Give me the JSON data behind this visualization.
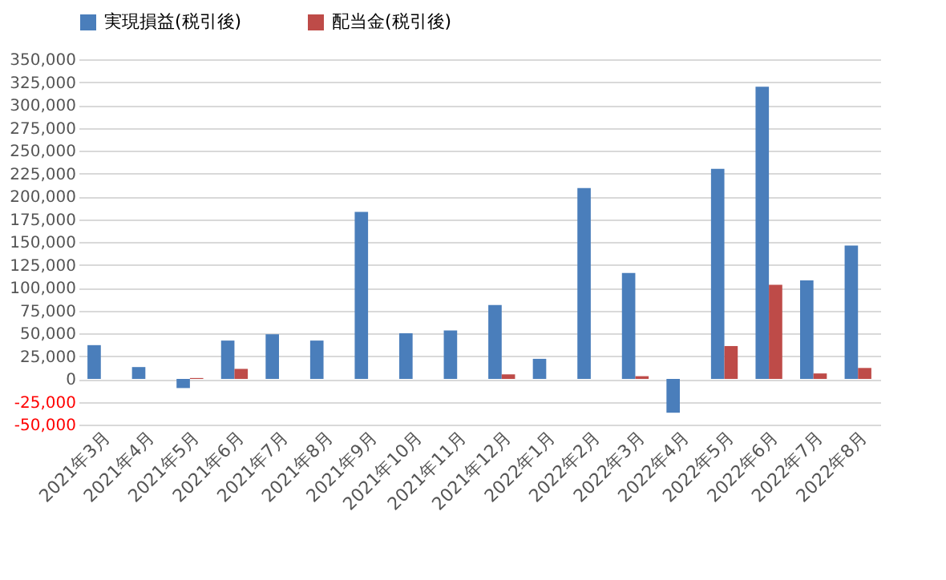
{
  "chart_data": {
    "type": "bar",
    "categories": [
      "2021年3月",
      "2021年4月",
      "2021年5月",
      "2021年6月",
      "2021年7月",
      "2021年8月",
      "2021年9月",
      "2021年10月",
      "2021年11月",
      "2021年12月",
      "2022年1月",
      "2022年2月",
      "2022年3月",
      "2022年4月",
      "2022年5月",
      "2022年6月",
      "2022年7月",
      "2022年8月"
    ],
    "series": [
      {
        "name": "実現損益(税引後)",
        "color": "#4a7ebb",
        "values": [
          37000,
          13000,
          -10000,
          42000,
          49000,
          42000,
          183000,
          50000,
          53000,
          81000,
          22000,
          209000,
          116000,
          -37000,
          230000,
          320000,
          108000,
          146000
        ]
      },
      {
        "name": "配当金(税引後)",
        "color": "#be4b48",
        "values": [
          null,
          null,
          1000,
          11000,
          null,
          null,
          null,
          null,
          null,
          5000,
          null,
          null,
          3000,
          null,
          36000,
          103000,
          6000,
          12000
        ]
      }
    ],
    "ylim": [
      -50000,
      350000
    ],
    "yticks": [
      {
        "value": -50000,
        "label": "-50,000"
      },
      {
        "value": -25000,
        "label": "-25,000"
      },
      {
        "value": 0,
        "label": "0"
      },
      {
        "value": 25000,
        "label": "25,000"
      },
      {
        "value": 50000,
        "label": "50,000"
      },
      {
        "value": 75000,
        "label": "75,000"
      },
      {
        "value": 100000,
        "label": "100,000"
      },
      {
        "value": 125000,
        "label": "125,000"
      },
      {
        "value": 150000,
        "label": "150,000"
      },
      {
        "value": 175000,
        "label": "175,000"
      },
      {
        "value": 200000,
        "label": "200,000"
      },
      {
        "value": 225000,
        "label": "225,000"
      },
      {
        "value": 250000,
        "label": "250,000"
      },
      {
        "value": 275000,
        "label": "275,000"
      },
      {
        "value": 300000,
        "label": "300,000"
      },
      {
        "value": 325000,
        "label": "325,000"
      },
      {
        "value": 350000,
        "label": "350,000"
      }
    ],
    "grid": "y",
    "legend": "top"
  }
}
